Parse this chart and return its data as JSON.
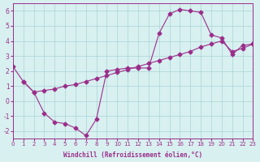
{
  "title": "",
  "xlabel": "Windchill (Refroidissement éolien,°C)",
  "ylabel": "",
  "xlim": [
    0,
    23
  ],
  "ylim": [
    -2.5,
    6.5
  ],
  "xticks": [
    0,
    1,
    2,
    3,
    4,
    5,
    6,
    7,
    8,
    9,
    10,
    11,
    12,
    13,
    14,
    15,
    16,
    17,
    18,
    19,
    20,
    21,
    22,
    23
  ],
  "yticks": [
    -2,
    -1,
    0,
    1,
    2,
    3,
    4,
    5,
    6
  ],
  "background_color": "#d8f0f0",
  "line_color": "#9b2d8a",
  "grid_color": "#aad4d4",
  "series1_x": [
    0,
    1,
    2,
    3,
    4,
    5,
    6,
    7,
    8,
    9,
    10,
    11,
    12,
    13,
    14,
    15,
    16,
    17,
    18,
    19,
    20,
    21,
    22,
    23
  ],
  "series1_y": [
    2.3,
    1.3,
    0.6,
    -0.8,
    -1.4,
    -1.5,
    -1.8,
    -2.3,
    -1.2,
    2.0,
    2.1,
    2.2,
    2.2,
    2.2,
    4.5,
    5.8,
    6.1,
    6.0,
    5.9,
    4.4,
    4.2,
    3.1,
    3.7,
    3.8
  ],
  "series2_x": [
    1,
    2,
    3,
    4,
    5,
    6,
    7,
    8,
    9,
    10,
    11,
    12,
    13,
    14,
    15,
    16,
    17,
    18,
    19,
    20,
    21,
    22,
    23
  ],
  "series2_y": [
    1.3,
    0.6,
    0.7,
    0.8,
    1.0,
    1.1,
    1.3,
    1.5,
    1.7,
    1.9,
    2.1,
    2.3,
    2.5,
    2.7,
    2.9,
    3.1,
    3.3,
    3.6,
    3.8,
    4.0,
    3.3,
    3.5,
    3.8
  ]
}
